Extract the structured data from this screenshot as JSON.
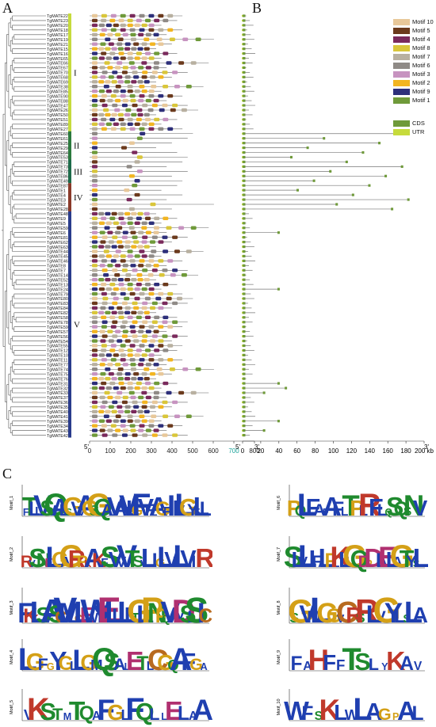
{
  "panels": {
    "a": "A",
    "b": "B",
    "c": "C"
  },
  "genes": [
    "TgMATE22",
    "TgMATE23",
    "TgMATE20",
    "TgMATE18",
    "TgMATE17",
    "TgMATE19",
    "TgMATE21",
    "TgMATE15",
    "TgMATE16",
    "TgMATE65",
    "TgMATE66",
    "TgMATE67",
    "TgMATE70",
    "TgMATE68",
    "TgMATE69",
    "TgMATE38",
    "TgMATE85",
    "TgMATE90",
    "TgMATE88",
    "TgMATE47",
    "TgMATE26",
    "TgMATE50",
    "TgMATE51",
    "TgMATE89",
    "TgMATE27",
    "TgMATE60",
    "TgMATE61",
    "TgMATE25",
    "TgMATE29",
    "TgMATE64",
    "TgMATE53",
    "TgMATE71",
    "TgMATE73",
    "TgMATE72",
    "TgMATE86",
    "TgMATE49",
    "TgMATE87",
    "TgMATE1",
    "TgMATE4",
    "TgMATE3",
    "TgMATE2",
    "TgMATE28",
    "TgMATE48",
    "TgMATE9",
    "TgMATE5",
    "TgMATE59",
    "TgMATE6",
    "TgMATE81",
    "TgMATE62",
    "TgMATE63",
    "TgMATE44",
    "TgMATE45",
    "TgMATE46",
    "TgMATE8",
    "TgMATE7",
    "TgMATE14",
    "TgMATE52",
    "TgMATE13",
    "TgMATE24",
    "TgMATE79",
    "TgMATE80",
    "TgMATE83",
    "TgMATE84",
    "TgMATE82",
    "TgMATE58",
    "TgMATE78",
    "TgMATE59",
    "TgMATE57",
    "TgMATE56",
    "TgMATE54",
    "TgMATE55",
    "TgMATE12",
    "TgMATE10",
    "TgMATE11",
    "TgMATE77",
    "TgMATE74",
    "TgMATE75",
    "TgMATE76",
    "TgMATE31",
    "TgMATE32",
    "TgMATE33",
    "TgMATE37",
    "TgMATE36",
    "TgMATE35",
    "TgMATE40",
    "TgMATE41",
    "TgMATE39",
    "TgMATE34",
    "TgMATE43",
    "TgMATE42"
  ],
  "groups": [
    "I",
    "II",
    "III",
    "IV",
    "V"
  ],
  "motif_axis": {
    "ticks": [
      "0",
      "100",
      "200",
      "300",
      "400",
      "500",
      "600",
      "700",
      "800"
    ],
    "end5": "5'",
    "end3": "3'"
  },
  "gene_axis": {
    "ticks": [
      "0",
      "20",
      "40",
      "60",
      "80",
      "100",
      "120",
      "140",
      "160",
      "180",
      "200 kb"
    ],
    "end5": "5'",
    "end3": "3'"
  },
  "legend": {
    "motifs": [
      {
        "label": "Motif 10",
        "color": "#e8c89a"
      },
      {
        "label": "Motif 5",
        "color": "#6b3a1d"
      },
      {
        "label": "Motif 4",
        "color": "#7a2a5c"
      },
      {
        "label": "Motif 8",
        "color": "#d9c63a"
      },
      {
        "label": "Motif 7",
        "color": "#b8b0a0"
      },
      {
        "label": "Motif 6",
        "color": "#8f8a86"
      },
      {
        "label": "Motif 3",
        "color": "#c793c0"
      },
      {
        "label": "Motif 2",
        "color": "#f2b522"
      },
      {
        "label": "Motif 9",
        "color": "#2d2f7a"
      },
      {
        "label": "Motif 1",
        "color": "#6f9a3a"
      }
    ],
    "structure": [
      {
        "label": "CDS",
        "color": "#6f9a3a"
      },
      {
        "label": "UTR",
        "color": "#c6db3c"
      }
    ]
  },
  "logos": [
    {
      "id": "Motif_1",
      "seq": "FTLLVSVQALSGVVAGSGQALVAYVLGFVFLAGFIIVLGYFLL"
    },
    {
      "id": "Motif_2",
      "seq": "RVSNELGAGRPKAKFSVVVTSVLIGLVLLVIIR"
    },
    {
      "id": "Motif_3",
      "seq": "FKKLSVASCVMLCLEWWYYELLILLTGLLPNPQVAVDSLSIC"
    },
    {
      "id": "Motif_4",
      "seq": "LGFGYGLLGMQSALETLCGQAFGA"
    },
    {
      "id": "Motif_5",
      "seq": "VKSTMTQAFGLFQLLELAA"
    },
    {
      "id": "Motif_6",
      "seq": "PQLFAFAFLTPLRFLQSQSNV"
    },
    {
      "id": "Motif_7",
      "seq": "SLVLIFALPLKLLGQDPDIAELAGTYSL"
    },
    {
      "id": "Motif_8",
      "seq": "SGVMLGGVCRSRLVGYLSLA"
    },
    {
      "id": "Motif_9",
      "seq": "FAHFFTSLYKAV"
    },
    {
      "id": "Motif_10",
      "seq": "WFSKLWLAGPAL"
    }
  ]
}
